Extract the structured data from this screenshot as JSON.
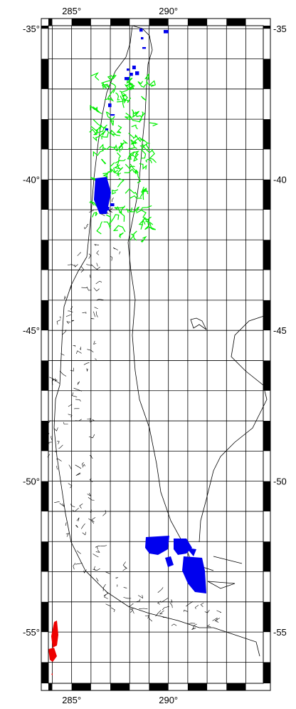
{
  "map": {
    "lon_ticks": [
      {
        "value": 285,
        "label": "285°"
      },
      {
        "value": 290,
        "label": "290°"
      }
    ],
    "lat_ticks_left": [
      {
        "value": -35,
        "label": "-35°"
      },
      {
        "value": -40,
        "label": "-40°"
      },
      {
        "value": -45,
        "label": "-45°"
      },
      {
        "value": -50,
        "label": "-50°"
      },
      {
        "value": -55,
        "label": "-55°"
      }
    ],
    "lat_ticks_right": [
      {
        "value": -35,
        "label": "-35"
      },
      {
        "value": -40,
        "label": "-40"
      },
      {
        "value": -45,
        "label": "-45"
      },
      {
        "value": -50,
        "label": "-50"
      },
      {
        "value": -55,
        "label": "-55"
      }
    ],
    "lon_range": [
      283.8,
      294.9
    ],
    "lat_range": [
      -56.7,
      -34.9
    ],
    "grid_step_degrees": 1,
    "colors": {
      "coast": "#000000",
      "grid": "#000000",
      "green_region": "#00ee00",
      "blue_region": "#0000ee",
      "red_region": "#ee0000"
    }
  }
}
